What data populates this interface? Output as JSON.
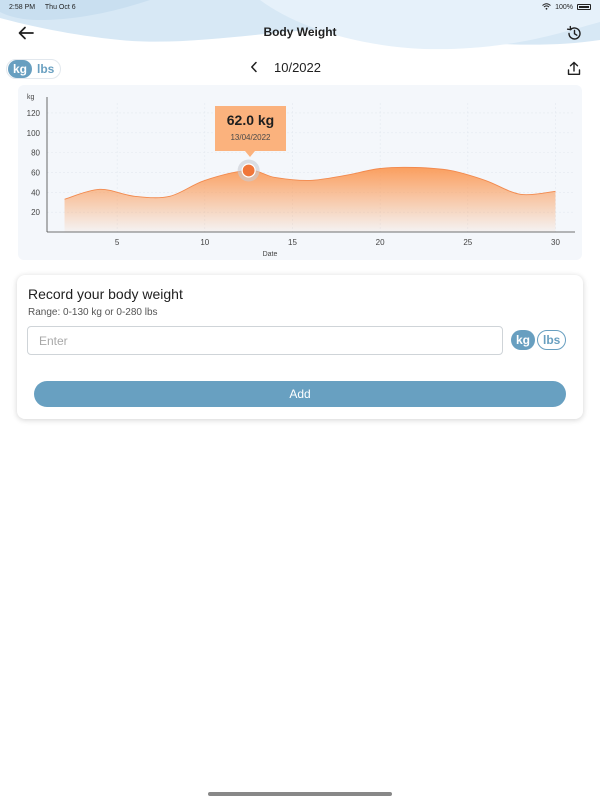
{
  "status_bar": {
    "time": "2:58 PM",
    "date": "Thu Oct 6",
    "battery": "100%"
  },
  "header": {
    "title": "Body Weight",
    "back_icon": "arrow-left-icon",
    "history_icon": "history-icon"
  },
  "unit_toggle": {
    "options": [
      "kg",
      "lbs"
    ],
    "selected": "kg"
  },
  "month_nav": {
    "month": "10/2022"
  },
  "chart_data": {
    "type": "area",
    "xlabel": "Date",
    "ylabel": "kg",
    "xlim": [
      1,
      31
    ],
    "ylim": [
      0,
      130
    ],
    "x_ticks": [
      5,
      10,
      15,
      20,
      25,
      30
    ],
    "y_ticks": [
      20,
      40,
      60,
      80,
      100,
      120
    ],
    "x": [
      2,
      4,
      6,
      8,
      10,
      12.5,
      14,
      16,
      18,
      20,
      22,
      24,
      26,
      28,
      30
    ],
    "y": [
      33,
      43,
      36,
      36,
      52,
      62,
      55,
      52,
      57,
      64,
      65,
      62,
      52,
      38,
      41
    ],
    "color": "#fb9a57",
    "highlight": {
      "x": 12.5,
      "y": 62.0,
      "value_label": "62.0 kg",
      "date_label": "13/04/2022"
    }
  },
  "record": {
    "heading": "Record your body weight",
    "range": "Range: 0-130 kg or 0-280 lbs",
    "placeholder": "Enter",
    "units": [
      "kg",
      "lbs"
    ],
    "selected_unit": "kg",
    "add_label": "Add"
  },
  "colors": {
    "accent": "#689fc0",
    "chart_fill": "#fbb27d",
    "marker": "#f0763a"
  }
}
